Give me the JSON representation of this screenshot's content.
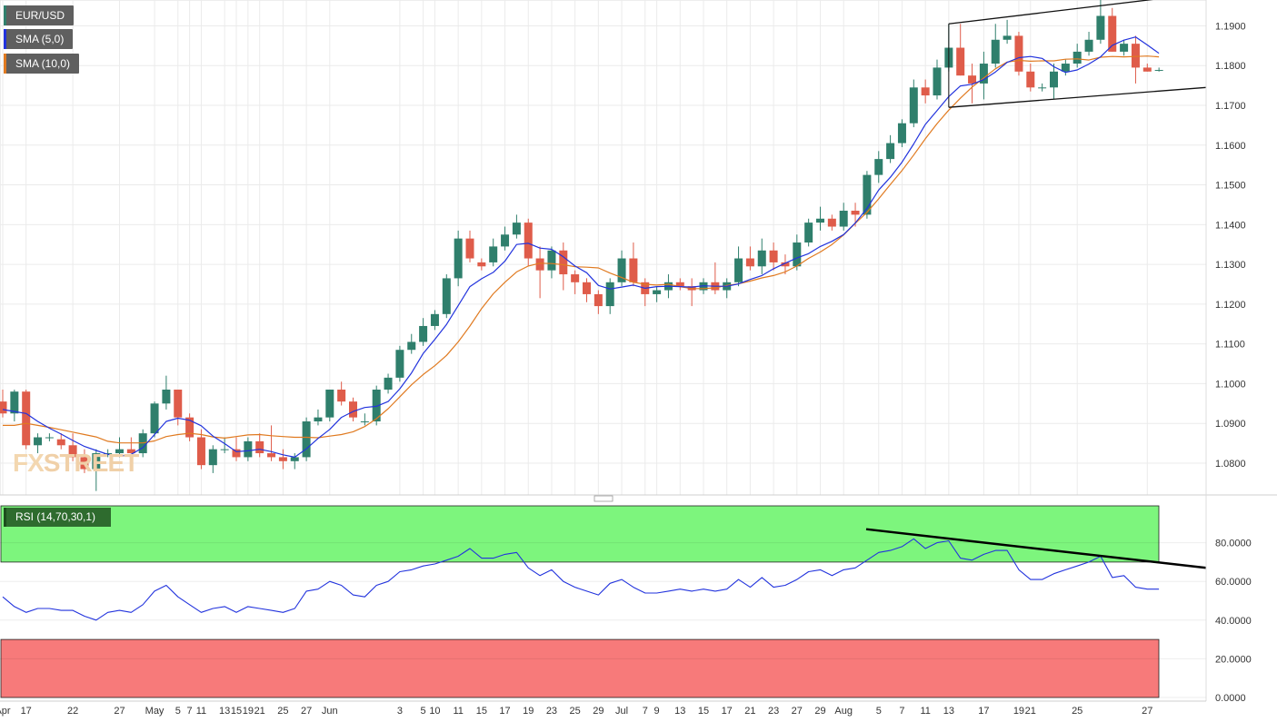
{
  "legends": {
    "main": "EUR/USD",
    "sma5": "SMA (5,0)",
    "sma10": "SMA (10,0)",
    "rsi": "RSI (14,70,30,1)"
  },
  "watermark": {
    "part1": "FX",
    "part2": "STREET"
  },
  "colors": {
    "bull": "#2f7f6c",
    "bear": "#df5c4a",
    "sma5": "#2233dd",
    "sma10": "#e07a20",
    "rsi": "#2233dd",
    "overbought_zone": "#7df57d",
    "oversold_zone": "#f77a7a",
    "grid": "#ebebeb"
  },
  "chart_data": [
    {
      "type": "candlestick",
      "title": "EUR/USD",
      "y_ticks": [
        "1.0800",
        "1.0900",
        "1.1000",
        "1.1100",
        "1.1200",
        "1.1300",
        "1.1400",
        "1.1500",
        "1.1600",
        "1.1700",
        "1.1800",
        "1.1900"
      ],
      "ylim": [
        1.072,
        1.1965
      ],
      "x_tick_labels": [
        "Apr",
        "17",
        "22",
        "27",
        "May",
        "5",
        "7",
        "11",
        "13",
        "15",
        "19",
        "21",
        "25",
        "27",
        "Jun",
        "3",
        "5",
        "10",
        "11",
        "15",
        "17",
        "19",
        "23",
        "25",
        "29",
        "Jul",
        "7",
        "9",
        "13",
        "15",
        "17",
        "21",
        "23",
        "27",
        "29",
        "Aug",
        "5",
        "7",
        "11",
        "13",
        "17",
        "19",
        "21",
        "25",
        "27"
      ],
      "ohlc": [
        [
          1.0955,
          1.0985,
          1.0915,
          1.0925
        ],
        [
          1.0925,
          1.0985,
          1.0905,
          1.098
        ],
        [
          1.098,
          1.0985,
          1.0835,
          1.0845
        ],
        [
          1.0845,
          1.0875,
          1.0825,
          1.0865
        ],
        [
          1.0865,
          1.0875,
          1.0855,
          1.0865
        ],
        [
          1.086,
          1.0875,
          1.0835,
          1.0845
        ],
        [
          1.0845,
          1.0875,
          1.0805,
          1.0815
        ],
        [
          1.0815,
          1.0835,
          1.0775,
          1.0785
        ],
        [
          1.0785,
          1.0835,
          1.073,
          1.0825
        ],
        [
          1.0825,
          1.0835,
          1.0815,
          1.0825
        ],
        [
          1.0825,
          1.0865,
          1.0815,
          1.0835
        ],
        [
          1.0835,
          1.0865,
          1.0825,
          1.0825
        ],
        [
          1.0825,
          1.0885,
          1.0815,
          1.0875
        ],
        [
          1.0875,
          1.0955,
          1.0865,
          1.095
        ],
        [
          1.095,
          1.102,
          1.0935,
          1.0985
        ],
        [
          1.0985,
          1.0985,
          1.0895,
          1.0915
        ],
        [
          1.0915,
          1.0925,
          1.0855,
          1.0865
        ],
        [
          1.0865,
          1.0885,
          1.0785,
          1.0795
        ],
        [
          1.0795,
          1.0845,
          1.0775,
          1.0835
        ],
        [
          1.0835,
          1.0865,
          1.0825,
          1.0835
        ],
        [
          1.0835,
          1.0865,
          1.0805,
          1.0815
        ],
        [
          1.0815,
          1.0865,
          1.0805,
          1.0855
        ],
        [
          1.0855,
          1.0875,
          1.0815,
          1.0825
        ],
        [
          1.0825,
          1.0895,
          1.0805,
          1.0815
        ],
        [
          1.0815,
          1.0835,
          1.0785,
          1.0805
        ],
        [
          1.0805,
          1.0825,
          1.0785,
          1.0815
        ],
        [
          1.0815,
          1.0915,
          1.0805,
          1.0905
        ],
        [
          1.0905,
          1.0935,
          1.0895,
          1.0915
        ],
        [
          1.0915,
          1.0985,
          1.0905,
          1.0985
        ],
        [
          1.0985,
          1.1005,
          1.0945,
          1.0955
        ],
        [
          1.0955,
          1.0965,
          1.0905,
          1.0915
        ],
        [
          1.0905,
          1.0925,
          1.0895,
          1.0905
        ],
        [
          1.0905,
          1.0995,
          1.0895,
          1.0985
        ],
        [
          1.0985,
          1.1025,
          1.0975,
          1.1015
        ],
        [
          1.1015,
          1.1095,
          1.1005,
          1.1085
        ],
        [
          1.1085,
          1.1125,
          1.1075,
          1.1105
        ],
        [
          1.1105,
          1.1165,
          1.1095,
          1.1145
        ],
        [
          1.1145,
          1.1185,
          1.1135,
          1.1175
        ],
        [
          1.1175,
          1.1275,
          1.1165,
          1.1265
        ],
        [
          1.1265,
          1.1385,
          1.1245,
          1.1365
        ],
        [
          1.1365,
          1.1385,
          1.1305,
          1.1315
        ],
        [
          1.1305,
          1.1315,
          1.1285,
          1.1295
        ],
        [
          1.1305,
          1.1365,
          1.1295,
          1.1345
        ],
        [
          1.1345,
          1.1395,
          1.1335,
          1.1375
        ],
        [
          1.1375,
          1.1425,
          1.1365,
          1.1405
        ],
        [
          1.1405,
          1.1415,
          1.1295,
          1.1315
        ],
        [
          1.1315,
          1.1345,
          1.1215,
          1.1285
        ],
        [
          1.1285,
          1.1345,
          1.1265,
          1.1335
        ],
        [
          1.1335,
          1.1355,
          1.1235,
          1.1275
        ],
        [
          1.1275,
          1.1285,
          1.1225,
          1.1255
        ],
        [
          1.1255,
          1.1265,
          1.1205,
          1.1225
        ],
        [
          1.1225,
          1.1235,
          1.1175,
          1.1195
        ],
        [
          1.1195,
          1.1265,
          1.1175,
          1.1255
        ],
        [
          1.1255,
          1.1335,
          1.1245,
          1.1315
        ],
        [
          1.1315,
          1.1355,
          1.1245,
          1.1255
        ],
        [
          1.1255,
          1.1265,
          1.1195,
          1.1225
        ],
        [
          1.1225,
          1.1245,
          1.1205,
          1.1235
        ],
        [
          1.1235,
          1.1275,
          1.1215,
          1.1255
        ],
        [
          1.1255,
          1.1265,
          1.1235,
          1.1245
        ],
        [
          1.1245,
          1.1265,
          1.1195,
          1.1235
        ],
        [
          1.1235,
          1.1265,
          1.1225,
          1.1255
        ],
        [
          1.1255,
          1.1305,
          1.1225,
          1.1235
        ],
        [
          1.1235,
          1.1265,
          1.1215,
          1.1255
        ],
        [
          1.1255,
          1.1345,
          1.1245,
          1.1315
        ],
        [
          1.1315,
          1.1345,
          1.1285,
          1.1295
        ],
        [
          1.1295,
          1.1365,
          1.1275,
          1.1335
        ],
        [
          1.1335,
          1.1355,
          1.1285,
          1.1305
        ],
        [
          1.1305,
          1.1325,
          1.1275,
          1.1295
        ],
        [
          1.1295,
          1.1375,
          1.1285,
          1.1355
        ],
        [
          1.1355,
          1.1415,
          1.1345,
          1.1405
        ],
        [
          1.1405,
          1.1445,
          1.1385,
          1.1415
        ],
        [
          1.1415,
          1.1425,
          1.1385,
          1.1395
        ],
        [
          1.1395,
          1.1455,
          1.1385,
          1.1435
        ],
        [
          1.1435,
          1.1455,
          1.1395,
          1.1425
        ],
        [
          1.1425,
          1.1535,
          1.1415,
          1.1525
        ],
        [
          1.1525,
          1.1585,
          1.1505,
          1.1565
        ],
        [
          1.1565,
          1.1625,
          1.1555,
          1.1605
        ],
        [
          1.1605,
          1.1665,
          1.1595,
          1.1655
        ],
        [
          1.1655,
          1.1765,
          1.1645,
          1.1745
        ],
        [
          1.1745,
          1.1765,
          1.1705,
          1.1725
        ],
        [
          1.1725,
          1.1815,
          1.1715,
          1.1795
        ],
        [
          1.1795,
          1.1905,
          1.1785,
          1.1845
        ],
        [
          1.1845,
          1.1905,
          1.1775,
          1.1775
        ],
        [
          1.1775,
          1.1805,
          1.1705,
          1.1755
        ],
        [
          1.1755,
          1.1835,
          1.1715,
          1.1805
        ],
        [
          1.1805,
          1.1905,
          1.1795,
          1.1865
        ],
        [
          1.1865,
          1.1915,
          1.1855,
          1.1875
        ],
        [
          1.1875,
          1.1885,
          1.1775,
          1.1785
        ],
        [
          1.1785,
          1.1805,
          1.1735,
          1.1745
        ],
        [
          1.1745,
          1.1755,
          1.1735,
          1.1745
        ],
        [
          1.1745,
          1.1805,
          1.1715,
          1.1785
        ],
        [
          1.1785,
          1.1815,
          1.1775,
          1.1805
        ],
        [
          1.1805,
          1.1855,
          1.1795,
          1.1835
        ],
        [
          1.1835,
          1.1885,
          1.1825,
          1.1865
        ],
        [
          1.1865,
          1.1965,
          1.1855,
          1.1925
        ],
        [
          1.1925,
          1.1945,
          1.1835,
          1.1835
        ],
        [
          1.1835,
          1.1865,
          1.1825,
          1.1855
        ],
        [
          1.1855,
          1.1875,
          1.1755,
          1.1795
        ],
        [
          1.1795,
          1.1805,
          1.1785,
          1.1785
        ],
        [
          1.1788,
          1.1795,
          1.1785,
          1.1789
        ]
      ],
      "sma5": [
        1.0935,
        1.093,
        1.0925,
        1.0905,
        1.0888,
        1.0873,
        1.0857,
        1.0842,
        1.0832,
        1.0822,
        1.0817,
        1.0822,
        1.0839,
        1.0872,
        1.0905,
        1.0913,
        1.0908,
        1.0894,
        1.0868,
        1.0849,
        1.0829,
        1.0831,
        1.0835,
        1.0829,
        1.0821,
        1.0815,
        1.0836,
        1.0862,
        1.0885,
        1.0915,
        1.093,
        1.094,
        1.0943,
        1.0955,
        1.0987,
        1.1027,
        1.1076,
        1.1111,
        1.1149,
        1.1196,
        1.1244,
        1.1264,
        1.128,
        1.1308,
        1.135,
        1.1353,
        1.1341,
        1.1338,
        1.1319,
        1.1296,
        1.1279,
        1.1247,
        1.1238,
        1.1243,
        1.1248,
        1.124,
        1.1244,
        1.1245,
        1.1244,
        1.1243,
        1.1246,
        1.1245,
        1.1245,
        1.1251,
        1.1262,
        1.1272,
        1.1289,
        1.1303,
        1.1316,
        1.1327,
        1.1345,
        1.1358,
        1.1375,
        1.1404,
        1.1441,
        1.1487,
        1.1519,
        1.1557,
        1.1603,
        1.1652,
        1.1687,
        1.1722,
        1.1749,
        1.1753,
        1.1765,
        1.1784,
        1.1808,
        1.182,
        1.1823,
        1.1818,
        1.1797,
        1.1783,
        1.1789,
        1.1804,
        1.1822,
        1.1851,
        1.1864,
        1.1872,
        1.1852,
        1.1831
      ],
      "sma10": [
        1.0895,
        1.0895,
        1.09,
        1.0895,
        1.089,
        1.0884,
        1.0878,
        1.0872,
        1.0866,
        1.0855,
        1.0851,
        1.0851,
        1.0851,
        1.0856,
        1.0867,
        1.0872,
        1.0875,
        1.0872,
        1.0866,
        1.0863,
        1.0867,
        1.0871,
        1.0872,
        1.0869,
        1.0867,
        1.0865,
        1.0865,
        1.0864,
        1.0868,
        1.0872,
        1.0879,
        1.0892,
        1.0912,
        1.0937,
        1.0967,
        1.0997,
        1.1023,
        1.1045,
        1.1071,
        1.1105,
        1.1145,
        1.1189,
        1.1226,
        1.1255,
        1.1281,
        1.1296,
        1.1303,
        1.1302,
        1.1299,
        1.1294,
        1.1293,
        1.1291,
        1.1278,
        1.1267,
        1.1255,
        1.125,
        1.1248,
        1.125,
        1.1244,
        1.1239,
        1.1239,
        1.1241,
        1.1247,
        1.1251,
        1.1258,
        1.1266,
        1.1272,
        1.1281,
        1.1296,
        1.1315,
        1.1331,
        1.135,
        1.1374,
        1.1403,
        1.1431,
        1.1465,
        1.1501,
        1.1536,
        1.1575,
        1.1616,
        1.1654,
        1.1688,
        1.1718,
        1.1746,
        1.1769,
        1.1792,
        1.1809,
        1.1813,
        1.1811,
        1.1812,
        1.1812,
        1.1816,
        1.1817,
        1.1814,
        1.1821,
        1.1823,
        1.1822,
        1.1823,
        1.1824,
        1.1822
      ],
      "channel_lines": [
        {
          "from": [
            1.1905
          ],
          "to": [
            1.1975
          ]
        },
        {
          "from": [
            1.1695
          ],
          "to": [
            1.1745
          ]
        }
      ]
    },
    {
      "type": "line",
      "title": "RSI (14,70,30,1)",
      "y_ticks": [
        "0.0000",
        "20.0000",
        "40.0000",
        "60.0000",
        "80.0000"
      ],
      "ylim": [
        0,
        100
      ],
      "overbought": 70,
      "oversold": 30,
      "values": [
        52,
        47,
        44,
        46,
        46,
        45,
        45,
        42,
        40,
        44,
        45,
        44,
        48,
        55,
        58,
        52,
        48,
        44,
        46,
        47,
        44,
        47,
        46,
        45,
        44,
        46,
        55,
        56,
        60,
        58,
        53,
        52,
        58,
        60,
        65,
        66,
        68,
        69,
        71,
        73,
        77,
        72,
        72,
        74,
        75,
        67,
        63,
        66,
        60,
        57,
        55,
        53,
        59,
        61,
        57,
        54,
        54,
        55,
        56,
        55,
        56,
        55,
        56,
        61,
        57,
        62,
        57,
        58,
        61,
        65,
        66,
        63,
        66,
        67,
        71,
        75,
        76,
        78,
        82,
        77,
        80,
        81,
        72,
        71,
        74,
        76,
        76,
        66,
        61,
        61,
        64,
        66,
        68,
        70,
        73,
        62,
        63,
        57,
        56,
        56
      ],
      "trendline": {
        "from": [
          87
        ],
        "to": [
          67
        ]
      }
    }
  ]
}
